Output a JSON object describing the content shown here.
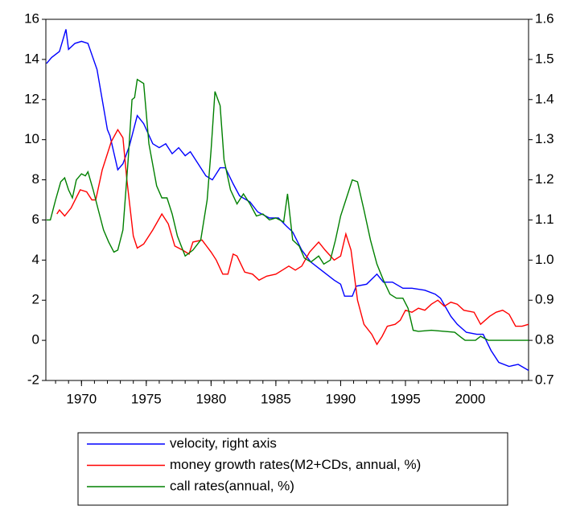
{
  "chart_data": {
    "type": "line",
    "xlim": [
      1967.25,
      2004.5
    ],
    "xticks": [
      1970,
      1975,
      1980,
      1985,
      1990,
      1995,
      2000
    ],
    "ylim": [
      -2,
      16
    ],
    "yticks": [
      -2,
      0,
      2,
      4,
      6,
      8,
      10,
      12,
      14,
      16
    ],
    "y2lim": [
      0.7,
      1.6
    ],
    "y2ticks": [
      0.7,
      0.8,
      0.9,
      {
        "value": 1.0,
        "label": "1.0"
      },
      1.1,
      1.2,
      1.3,
      1.4,
      1.5,
      1.6
    ],
    "legend": "bottom",
    "series": [
      {
        "name": "velocity, right axis",
        "color": "#0000ff",
        "axis": "y2",
        "x": [
          1967.3,
          1967.7,
          1968.3,
          1968.8,
          1969,
          1969.5,
          1970,
          1970.5,
          1971.2,
          1972,
          1972.2,
          1972.8,
          1973.2,
          1973.7,
          1974.3,
          1974.8,
          1975.5,
          1976,
          1976.5,
          1977,
          1977.5,
          1978,
          1978.4,
          1979,
          1979.6,
          1980.1,
          1980.7,
          1981.1,
          1981.7,
          1982.2,
          1983,
          1983.6,
          1984.5,
          1985.2,
          1985.8,
          1986.3,
          1987,
          1987.7,
          1988.5,
          1989.5,
          1990,
          1990.3,
          1990.9,
          1991.2,
          1992,
          1992.8,
          1993.3,
          1994,
          1994.8,
          1995.5,
          1996.5,
          1997.3,
          1997.7,
          1998.5,
          1999,
          1999.7,
          2000.5,
          2001,
          2001.6,
          2002.2,
          2003,
          2003.7,
          2004.5
        ],
        "values": [
          1.49,
          1.505,
          1.52,
          1.575,
          1.525,
          1.54,
          1.545,
          1.54,
          1.475,
          1.325,
          1.31,
          1.225,
          1.24,
          1.285,
          1.36,
          1.34,
          1.29,
          1.28,
          1.29,
          1.265,
          1.28,
          1.26,
          1.27,
          1.24,
          1.21,
          1.2,
          1.23,
          1.23,
          1.19,
          1.16,
          1.145,
          1.12,
          1.105,
          1.105,
          1.085,
          1.07,
          1.025,
          0.995,
          0.975,
          0.95,
          0.94,
          0.91,
          0.91,
          0.935,
          0.94,
          0.965,
          0.945,
          0.945,
          0.93,
          0.93,
          0.925,
          0.915,
          0.905,
          0.86,
          0.84,
          0.82,
          0.815,
          0.815,
          0.775,
          0.745,
          0.735,
          0.74,
          0.725
        ]
      },
      {
        "name": "money growth rates(M2+CDs, annual, %)",
        "color": "#ff0000",
        "x": [
          1968.1,
          1968.3,
          1968.7,
          1969.2,
          1969.9,
          1970.4,
          1970.8,
          1971.1,
          1971.6,
          1972.3,
          1972.8,
          1973.2,
          1973.5,
          1974,
          1974.3,
          1974.8,
          1975.5,
          1976.2,
          1976.7,
          1977.2,
          1977.8,
          1978.3,
          1978.6,
          1979.3,
          1980,
          1980.4,
          1980.9,
          1981.3,
          1981.7,
          1982,
          1982.6,
          1983.2,
          1983.7,
          1984.3,
          1985,
          1985.5,
          1986,
          1986.5,
          1987,
          1987.6,
          1988.3,
          1988.8,
          1989.5,
          1990,
          1990.4,
          1990.8,
          1991.3,
          1991.8,
          1992.4,
          1992.8,
          1993.2,
          1993.6,
          1994.2,
          1994.6,
          1995,
          1995.5,
          1996,
          1996.5,
          1997,
          1997.5,
          1998,
          1998.5,
          1999,
          1999.5,
          2000.3,
          2000.8,
          2001.5,
          2002,
          2002.5,
          2003,
          2003.5,
          2004,
          2004.5
        ],
        "values": [
          6.3,
          6.5,
          6.2,
          6.6,
          7.5,
          7.4,
          7.0,
          7.0,
          8.5,
          9.9,
          10.5,
          10.1,
          8.0,
          5.2,
          4.6,
          4.8,
          5.5,
          6.3,
          5.8,
          4.7,
          4.5,
          4.3,
          4.9,
          5.0,
          4.4,
          4.0,
          3.3,
          3.3,
          4.3,
          4.2,
          3.4,
          3.3,
          3.0,
          3.2,
          3.3,
          3.5,
          3.7,
          3.5,
          3.7,
          4.4,
          4.9,
          4.5,
          4.0,
          4.2,
          5.3,
          4.5,
          2.0,
          0.8,
          0.3,
          -0.2,
          0.2,
          0.7,
          0.8,
          1.0,
          1.5,
          1.4,
          1.6,
          1.5,
          1.8,
          2.0,
          1.7,
          1.9,
          1.8,
          1.5,
          1.4,
          0.8,
          1.2,
          1.4,
          1.5,
          1.3,
          0.7,
          0.7,
          0.8
        ]
      },
      {
        "name": "call rates(annual, %)",
        "color": "#008000",
        "x": [
          1967.3,
          1967.6,
          1968,
          1968.4,
          1968.7,
          1969,
          1969.3,
          1969.6,
          1970,
          1970.3,
          1970.5,
          1970.9,
          1971.3,
          1971.7,
          1972.1,
          1972.5,
          1972.8,
          1973.2,
          1973.6,
          1973.9,
          1974.1,
          1974.3,
          1974.8,
          1975.2,
          1975.8,
          1976.2,
          1976.6,
          1977,
          1977.4,
          1977.7,
          1978,
          1978.6,
          1979.2,
          1979.7,
          1980,
          1980.3,
          1980.7,
          1981,
          1981.5,
          1982,
          1982.5,
          1983,
          1983.5,
          1984,
          1984.5,
          1985,
          1985.6,
          1985.9,
          1986.3,
          1986.8,
          1987.2,
          1987.7,
          1988.3,
          1988.7,
          1989.2,
          1989.6,
          1990,
          1990.4,
          1990.9,
          1991.3,
          1991.8,
          1992.3,
          1992.8,
          1993.3,
          1993.8,
          1994.3,
          1994.8,
          1995.2,
          1995.6,
          1996,
          1997,
          1998,
          1998.8,
          1999.3,
          1999.6,
          2000.4,
          2000.8,
          2001.1,
          2001.4,
          2004.5
        ],
        "values": [
          6.0,
          6.0,
          7.0,
          7.9,
          8.1,
          7.5,
          7.1,
          8.0,
          8.3,
          8.2,
          8.4,
          7.5,
          6.5,
          5.5,
          4.9,
          4.4,
          4.5,
          5.5,
          9.0,
          12.0,
          12.1,
          13.0,
          12.8,
          9.8,
          7.7,
          7.1,
          7.1,
          6.3,
          5.2,
          4.7,
          4.2,
          4.5,
          5.0,
          7.0,
          9.5,
          12.4,
          11.7,
          9.0,
          7.5,
          6.8,
          7.3,
          6.8,
          6.2,
          6.3,
          6.0,
          6.1,
          5.9,
          7.3,
          5.0,
          4.7,
          4.1,
          3.9,
          4.2,
          3.8,
          4.0,
          5.0,
          6.2,
          7.0,
          8.0,
          7.9,
          6.5,
          5.0,
          3.8,
          3.0,
          2.3,
          2.1,
          2.1,
          1.6,
          0.5,
          0.45,
          0.5,
          0.45,
          0.4,
          0.15,
          0.0,
          0.0,
          0.2,
          0.1,
          0.0,
          0.0
        ]
      }
    ]
  }
}
